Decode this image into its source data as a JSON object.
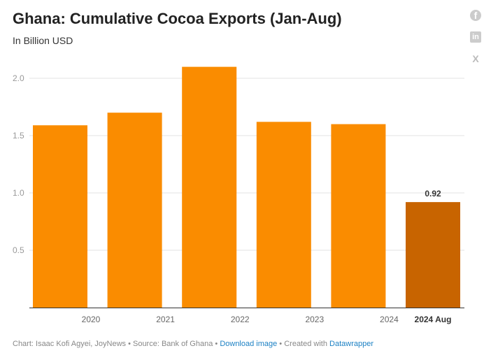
{
  "chart_data": {
    "type": "bar",
    "title": "Ghana: Cumulative Cocoa Exports (Jan-Aug)",
    "subtitle": "In Billion USD",
    "categories": [
      "2020",
      "2021",
      "2022",
      "2023",
      "2024",
      "2024 Aug"
    ],
    "values": [
      1.59,
      1.7,
      2.1,
      1.62,
      1.6,
      0.92
    ],
    "highlight_index": 5,
    "data_labels": {
      "5": "0.92"
    },
    "yticks": [
      "0.5",
      "1.0",
      "1.5",
      "2.0"
    ],
    "ylim": [
      0,
      2.2
    ],
    "grid": true,
    "colors": {
      "bar": "#fa8c00",
      "highlight": "#c86400"
    }
  },
  "share": {
    "facebook": "f",
    "linkedin": "in",
    "x": "X"
  },
  "footer": {
    "chart": "Chart: Isaac Kofi Agyei, JoyNews",
    "source": "Source: Bank of Ghana",
    "download": "Download image",
    "created": "Created with",
    "tool": "Datawrapper",
    "sep": " • "
  }
}
